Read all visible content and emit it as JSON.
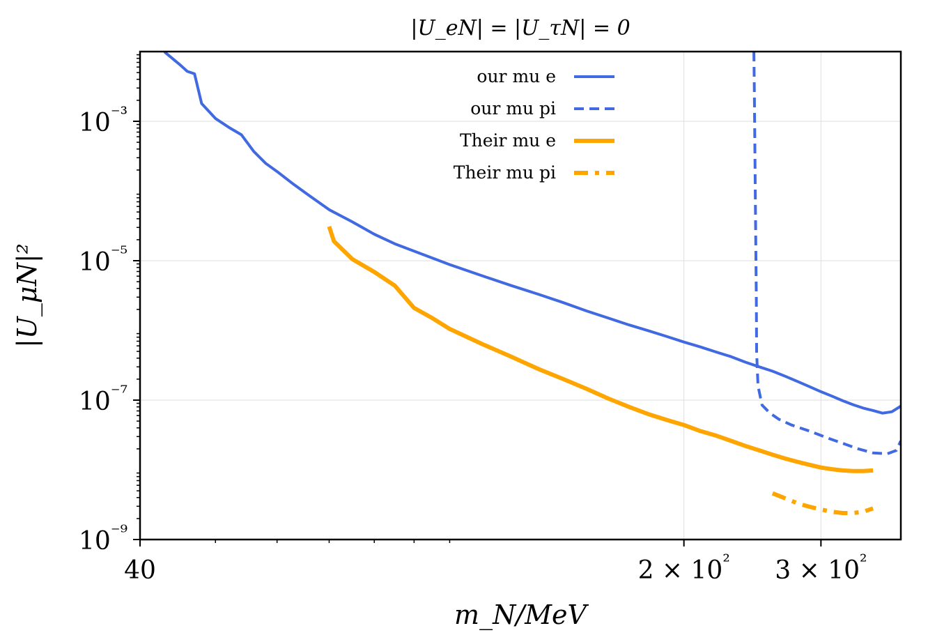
{
  "chart_data": {
    "type": "line",
    "title": "|U_eN| = |U_τN| = 0",
    "xlabel": "m_N/MeV",
    "ylabel": "|U_μN|²",
    "xscale": "log",
    "yscale": "log",
    "xlim": [
      40,
      380
    ],
    "ylim": [
      1e-09,
      0.01
    ],
    "grid": true,
    "legend_position": "top-center",
    "x_ticks": [
      {
        "value": 40,
        "label": "40"
      },
      {
        "value": 200,
        "label": "2 × 10²"
      },
      {
        "value": 300,
        "label": "3 × 10²"
      }
    ],
    "y_ticks": [
      {
        "value": 1e-09,
        "label": "10⁻⁹"
      },
      {
        "value": 1e-07,
        "label": "10⁻⁷"
      },
      {
        "value": 1e-05,
        "label": "10⁻⁵"
      },
      {
        "value": 0.001,
        "label": "10⁻³"
      }
    ],
    "series": [
      {
        "name": "our mu e",
        "color": "#4169E1",
        "dash": "solid",
        "x": [
          43,
          45,
          46,
          47,
          48,
          50,
          52,
          54,
          56,
          58,
          60,
          63,
          66,
          70,
          75,
          80,
          85,
          90,
          100,
          110,
          120,
          130,
          140,
          150,
          160,
          170,
          180,
          190,
          200,
          210,
          220,
          230,
          240,
          250,
          260,
          270,
          280,
          290,
          300,
          310,
          320,
          330,
          340,
          350,
          360,
          370,
          380
        ],
        "y": [
          0.0099,
          0.0065,
          0.0052,
          0.0048,
          0.0018,
          0.0011,
          0.00082,
          0.00064,
          0.00037,
          0.00025,
          0.00019,
          0.000125,
          8.6e-05,
          5.4e-05,
          3.6e-05,
          2.4e-05,
          1.75e-05,
          1.37e-05,
          8.8e-06,
          6.1e-06,
          4.4e-06,
          3.3e-06,
          2.5e-06,
          1.9e-06,
          1.5e-06,
          1.2e-06,
          9.9e-07,
          8.2e-07,
          6.8e-07,
          5.8e-07,
          4.9e-07,
          4.2e-07,
          3.5e-07,
          3e-07,
          2.6e-07,
          2.2e-07,
          1.85e-07,
          1.56e-07,
          1.32e-07,
          1.14e-07,
          9.8e-08,
          8.6e-08,
          7.7e-08,
          7.1e-08,
          6.5e-08,
          6.8e-08,
          8.2e-08
        ]
      },
      {
        "name": "our mu pi",
        "color": "#4169E1",
        "dash": "dashed",
        "x": [
          246,
          246.3,
          246.6,
          247,
          247.4,
          247.8,
          248,
          249,
          252,
          258,
          265,
          275,
          290,
          305,
          320,
          335,
          350,
          365,
          375,
          380
        ],
        "y": [
          0.01,
          0.003,
          0.0007,
          0.00012,
          1.8e-05,
          2.8e-06,
          5e-07,
          1.6e-07,
          8.5e-08,
          6.5e-08,
          5.3e-08,
          4.4e-08,
          3.6e-08,
          2.9e-08,
          2.4e-08,
          2e-08,
          1.75e-08,
          1.7e-08,
          1.9e-08,
          2.6e-08
        ]
      },
      {
        "name": "Their mu e",
        "color": "#FFA500",
        "dash": "solid",
        "x": [
          70,
          71,
          75,
          80,
          85,
          90,
          95,
          100,
          110,
          120,
          130,
          140,
          150,
          160,
          170,
          180,
          190,
          200,
          210,
          220,
          230,
          240,
          250,
          260,
          270,
          280,
          290,
          300,
          310,
          320,
          330,
          340,
          350
        ],
        "y": [
          3.1e-05,
          1.9e-05,
          1.05e-05,
          6.9e-06,
          4.4e-06,
          2.1e-06,
          1.5e-06,
          1.05e-06,
          6.4e-07,
          4.2e-07,
          2.8e-07,
          2e-07,
          1.45e-07,
          1.05e-07,
          8e-08,
          6.3e-08,
          5.2e-08,
          4.4e-08,
          3.6e-08,
          3.1e-08,
          2.6e-08,
          2.2e-08,
          1.9e-08,
          1.65e-08,
          1.45e-08,
          1.3e-08,
          1.18e-08,
          1.08e-08,
          1.02e-08,
          9.8e-09,
          9.6e-09,
          9.6e-09,
          9.8e-09
        ]
      },
      {
        "name": "Their mu pi",
        "color": "#FFA500",
        "dash": "dashdot",
        "x": [
          260,
          270,
          280,
          290,
          300,
          310,
          320,
          330,
          340,
          350
        ],
        "y": [
          4.6e-09,
          3.9e-09,
          3.3e-09,
          2.95e-09,
          2.7e-09,
          2.5e-09,
          2.4e-09,
          2.4e-09,
          2.5e-09,
          2.8e-09
        ]
      }
    ]
  }
}
